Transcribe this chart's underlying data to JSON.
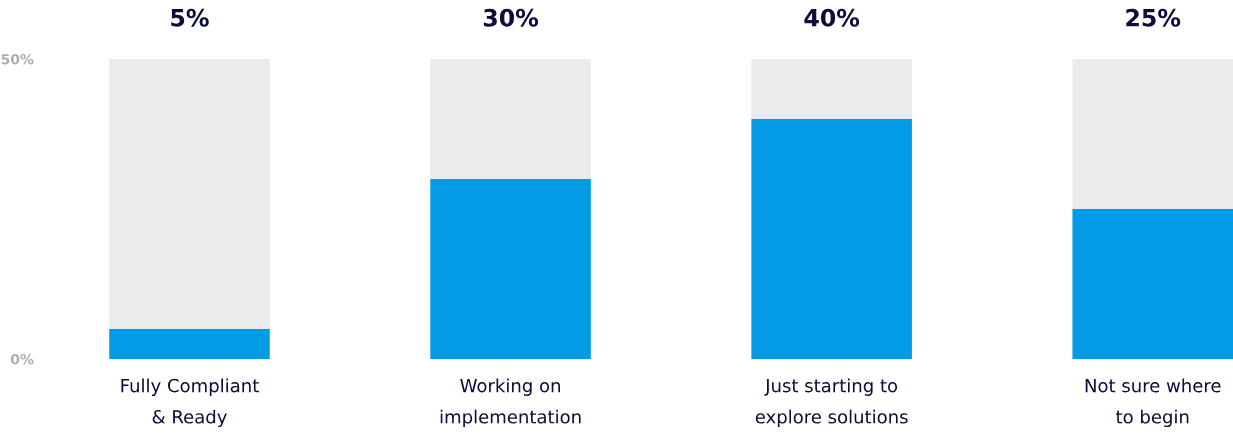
{
  "chart_data": {
    "type": "bar",
    "stacked": true,
    "categories": [
      "Fully Compliant\n& Ready",
      "Working on\nimplementation",
      "Just starting to\nexplore solutions",
      "Not sure where\nto begin"
    ],
    "series": [
      {
        "color": "#039be5",
        "values": [
          5,
          30,
          40,
          25
        ],
        "value_labels": [
          "5%",
          "30%",
          "40%",
          "25%"
        ]
      },
      {
        "color": "#ebebed",
        "values": [
          45,
          20,
          10,
          25
        ]
      }
    ],
    "ylim": [
      0,
      50
    ],
    "yticks": [
      {
        "value": 0,
        "label": "0%"
      },
      {
        "value": 50,
        "label": "50%"
      }
    ],
    "grid": false,
    "legend": false
  }
}
